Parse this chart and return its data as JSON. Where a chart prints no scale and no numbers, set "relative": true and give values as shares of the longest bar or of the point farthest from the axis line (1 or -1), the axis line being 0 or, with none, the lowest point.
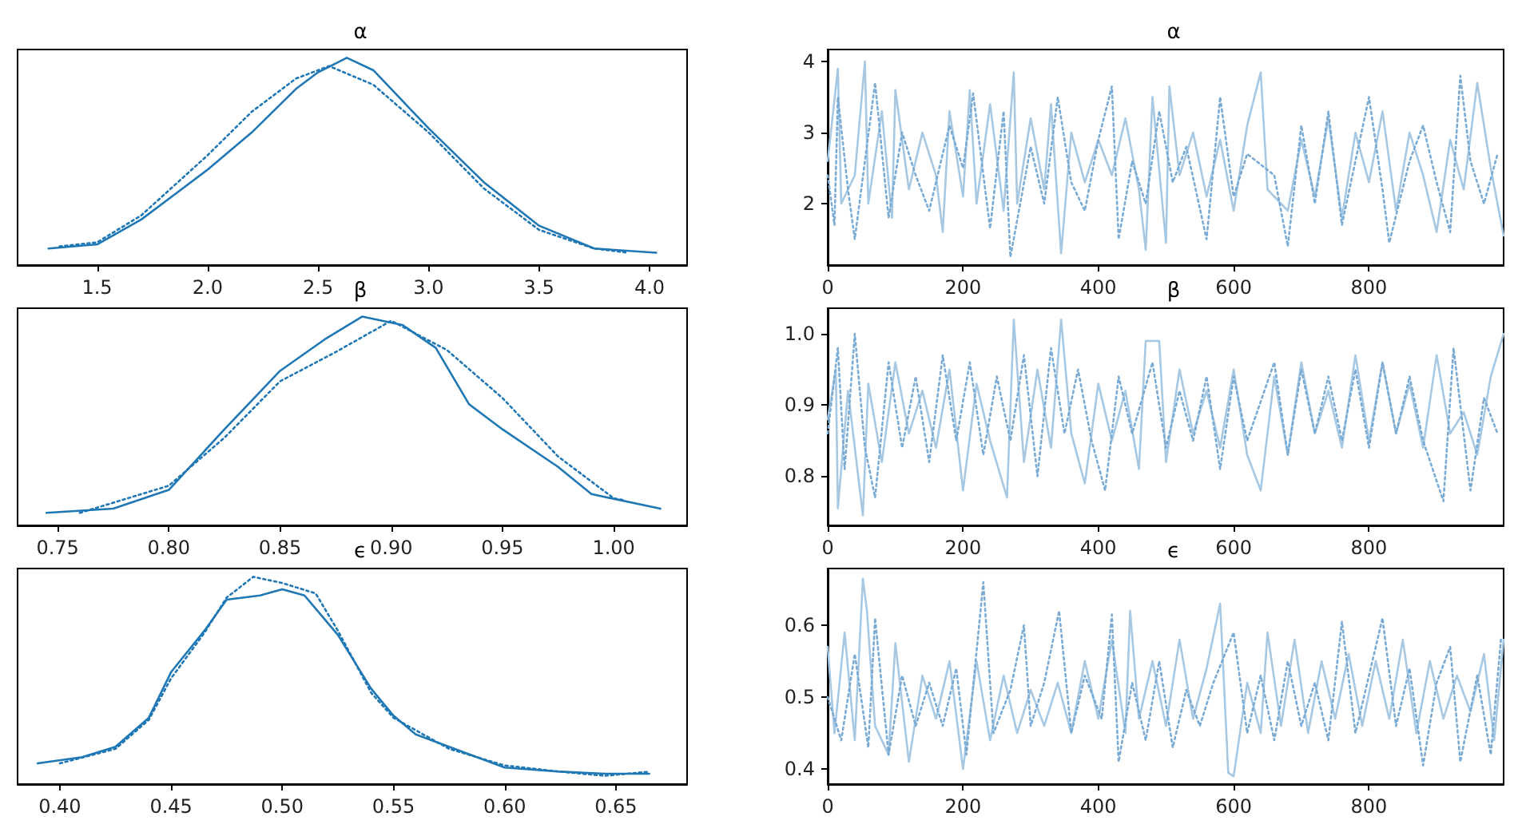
{
  "chart_data": [
    {
      "type": "line",
      "title": "α",
      "relative": true,
      "tick_labels": "x",
      "xlim": [
        1.14,
        4.17
      ],
      "xticks": [
        1.5,
        {
          "value": 2,
          "label": "2.0"
        },
        2.5,
        {
          "value": 3,
          "label": "3.0"
        },
        3.5,
        {
          "value": 4,
          "label": "4.0"
        }
      ],
      "series": [
        {
          "color": "#1f77b4",
          "line_style": "solid",
          "x": [
            1.28,
            1.5,
            1.7,
            2.0,
            2.2,
            2.4,
            2.5,
            2.63,
            2.75,
            3.0,
            3.25,
            3.5,
            3.75,
            4.03
          ],
          "values": [
            0.08,
            0.1,
            0.22,
            0.46,
            0.64,
            0.85,
            0.93,
            1,
            0.94,
            0.66,
            0.4,
            0.19,
            0.08,
            0.06
          ]
        },
        {
          "color": "#1f77b4",
          "line_style": "dotted",
          "x": [
            1.33,
            1.5,
            1.7,
            2.0,
            2.2,
            2.4,
            2.55,
            2.75,
            3.0,
            3.25,
            3.5,
            3.75,
            3.9
          ],
          "values": [
            0.09,
            0.11,
            0.24,
            0.53,
            0.74,
            0.9,
            0.96,
            0.87,
            0.64,
            0.37,
            0.17,
            0.08,
            0.06
          ]
        }
      ]
    },
    {
      "type": "line",
      "title": "α",
      "xlim": [
        0,
        999
      ],
      "xticks": [
        0,
        200,
        400,
        600,
        800
      ],
      "ylim": [
        1.135,
        4.17
      ],
      "yticks": [
        2,
        3,
        4
      ],
      "series": [
        {
          "color": "#a6c8e2",
          "line_style": "solid",
          "x": [
            0,
            15,
            20,
            40,
            55,
            60,
            80,
            95,
            100,
            120,
            140,
            160,
            170,
            180,
            200,
            210,
            220,
            240,
            260,
            275,
            280,
            300,
            320,
            330,
            345,
            360,
            380,
            400,
            420,
            440,
            460,
            470,
            480,
            500,
            505,
            520,
            540,
            560,
            580,
            600,
            620,
            640,
            650,
            680,
            700,
            720,
            740,
            760,
            780,
            800,
            820,
            840,
            860,
            880,
            900,
            920,
            940,
            960,
            980,
            999
          ],
          "values": [
            2.6,
            3.9,
            2.0,
            2.4,
            4.0,
            2.0,
            3.3,
            1.8,
            3.6,
            2.2,
            3.0,
            2.4,
            1.6,
            3.3,
            2.1,
            3.6,
            2.0,
            3.4,
            1.9,
            3.85,
            2.0,
            3.2,
            2.2,
            3.4,
            1.3,
            3.0,
            2.3,
            2.9,
            2.4,
            3.2,
            2.2,
            1.35,
            3.5,
            1.45,
            3.65,
            2.4,
            3.0,
            2.1,
            2.9,
            1.9,
            3.1,
            3.85,
            2.2,
            1.9,
            2.9,
            2.1,
            3.2,
            1.8,
            3.0,
            2.3,
            3.3,
            1.9,
            3.0,
            2.4,
            1.6,
            2.9,
            2.2,
            3.7,
            2.5,
            1.55
          ]
        },
        {
          "color": "#7aabd4",
          "line_style": "dotted",
          "x": [
            0,
            10,
            15,
            30,
            40,
            70,
            90,
            110,
            130,
            150,
            180,
            200,
            215,
            240,
            260,
            270,
            300,
            320,
            340,
            360,
            380,
            400,
            420,
            430,
            450,
            470,
            490,
            510,
            530,
            560,
            580,
            600,
            620,
            660,
            680,
            700,
            720,
            740,
            760,
            780,
            800,
            820,
            830,
            860,
            880,
            900,
            920,
            935,
            950,
            970,
            990
          ],
          "values": [
            2.4,
            1.7,
            3.5,
            2.2,
            1.5,
            3.7,
            1.8,
            3.0,
            2.4,
            1.9,
            3.1,
            2.5,
            3.55,
            1.65,
            3.3,
            1.25,
            2.8,
            2.0,
            3.5,
            2.3,
            1.9,
            2.9,
            3.65,
            1.5,
            2.6,
            2.0,
            3.3,
            2.3,
            2.8,
            1.5,
            3.5,
            2.1,
            2.7,
            2.4,
            1.4,
            3.1,
            2.0,
            3.3,
            1.7,
            2.6,
            3.5,
            2.2,
            1.45,
            2.6,
            3.1,
            2.3,
            1.6,
            3.8,
            2.6,
            2.0,
            2.7
          ]
        }
      ]
    },
    {
      "type": "line",
      "title": "β",
      "relative": true,
      "tick_labels": "x",
      "xlim": [
        0.732,
        1.033
      ],
      "xticks": [
        0.75,
        {
          "value": 0.8,
          "label": "0.80"
        },
        0.85,
        {
          "value": 0.9,
          "label": "0.90"
        },
        0.95,
        {
          "value": 1,
          "label": "1.00"
        }
      ],
      "series": [
        {
          "color": "#1f77b4",
          "line_style": "solid",
          "x": [
            0.745,
            0.775,
            0.8,
            0.825,
            0.85,
            0.87,
            0.887,
            0.905,
            0.92,
            0.935,
            0.95,
            0.975,
            0.99,
            1.021
          ],
          "values": [
            0.06,
            0.08,
            0.17,
            0.46,
            0.74,
            0.89,
            1,
            0.96,
            0.85,
            0.58,
            0.46,
            0.28,
            0.15,
            0.08
          ]
        },
        {
          "color": "#1f77b4",
          "line_style": "dotted",
          "x": [
            0.76,
            0.8,
            0.825,
            0.85,
            0.875,
            0.9,
            0.925,
            0.95,
            0.975,
            1.0,
            1.005
          ],
          "values": [
            0.06,
            0.19,
            0.42,
            0.69,
            0.83,
            0.98,
            0.84,
            0.61,
            0.33,
            0.13,
            0.12
          ]
        }
      ]
    },
    {
      "type": "line",
      "title": "β",
      "xlim": [
        0,
        999
      ],
      "xticks": [
        0,
        200,
        400,
        600,
        800
      ],
      "ylim": [
        0.731,
        1.036
      ],
      "yticks": [
        {
          "value": 0.8,
          "label": "0.8"
        },
        {
          "value": 0.9,
          "label": "0.9"
        },
        {
          "value": 1,
          "label": "1.0"
        }
      ],
      "series": [
        {
          "color": "#a6c8e2",
          "line_style": "solid",
          "x": [
            0,
            12,
            15,
            30,
            52,
            60,
            80,
            100,
            120,
            140,
            160,
            180,
            200,
            220,
            240,
            265,
            275,
            290,
            310,
            330,
            345,
            360,
            380,
            400,
            420,
            440,
            460,
            470,
            490,
            500,
            520,
            540,
            560,
            580,
            600,
            620,
            640,
            660,
            680,
            700,
            720,
            740,
            760,
            780,
            800,
            820,
            840,
            860,
            880,
            900,
            920,
            940,
            960,
            980,
            999
          ],
          "values": [
            0.88,
            0.95,
            0.755,
            0.92,
            0.745,
            0.93,
            0.82,
            0.96,
            0.86,
            0.92,
            0.84,
            0.95,
            0.78,
            0.93,
            0.85,
            0.77,
            1.02,
            0.82,
            0.95,
            0.84,
            1.02,
            0.86,
            0.79,
            0.93,
            0.85,
            0.92,
            0.81,
            0.99,
            0.99,
            0.82,
            0.95,
            0.86,
            0.92,
            0.84,
            0.95,
            0.83,
            0.78,
            0.94,
            0.83,
            0.96,
            0.86,
            0.92,
            0.84,
            0.97,
            0.85,
            0.96,
            0.86,
            0.93,
            0.84,
            0.97,
            0.86,
            0.89,
            0.83,
            0.94,
            1.0
          ]
        },
        {
          "color": "#7aabd4",
          "line_style": "dotted",
          "x": [
            0,
            15,
            25,
            40,
            55,
            70,
            90,
            110,
            130,
            150,
            170,
            190,
            210,
            230,
            250,
            270,
            290,
            310,
            330,
            350,
            370,
            390,
            410,
            430,
            450,
            480,
            500,
            520,
            540,
            560,
            580,
            600,
            620,
            660,
            680,
            700,
            720,
            740,
            760,
            780,
            800,
            820,
            840,
            860,
            880,
            910,
            925,
            950,
            970,
            990
          ],
          "values": [
            0.86,
            0.98,
            0.81,
            1.0,
            0.84,
            0.77,
            0.96,
            0.84,
            0.94,
            0.82,
            0.97,
            0.85,
            0.96,
            0.83,
            0.94,
            0.85,
            0.97,
            0.8,
            0.98,
            0.86,
            0.95,
            0.85,
            0.78,
            0.94,
            0.86,
            0.96,
            0.84,
            0.92,
            0.85,
            0.94,
            0.81,
            0.94,
            0.85,
            0.96,
            0.83,
            0.95,
            0.86,
            0.94,
            0.85,
            0.95,
            0.84,
            0.96,
            0.86,
            0.94,
            0.85,
            0.765,
            0.98,
            0.78,
            0.91,
            0.86
          ]
        }
      ]
    },
    {
      "type": "line",
      "title": "ϵ",
      "relative": true,
      "tick_labels": "x",
      "xlim": [
        0.381,
        0.682
      ],
      "xticks": [
        {
          "value": 0.4,
          "label": "0.40"
        },
        0.45,
        {
          "value": 0.5,
          "label": "0.50"
        },
        0.55,
        {
          "value": 0.6,
          "label": "0.60"
        },
        0.65
      ],
      "series": [
        {
          "color": "#1f77b4",
          "line_style": "solid",
          "x": [
            0.39,
            0.41,
            0.425,
            0.44,
            0.45,
            0.465,
            0.475,
            0.49,
            0.5,
            0.51,
            0.525,
            0.54,
            0.55,
            0.56,
            0.575,
            0.6,
            0.625,
            0.645,
            0.665
          ],
          "values": [
            0.1,
            0.13,
            0.18,
            0.32,
            0.54,
            0.74,
            0.89,
            0.91,
            0.94,
            0.91,
            0.72,
            0.46,
            0.33,
            0.24,
            0.18,
            0.08,
            0.06,
            0.05,
            0.05
          ]
        },
        {
          "color": "#1f77b4",
          "line_style": "dotted",
          "x": [
            0.4,
            0.425,
            0.44,
            0.45,
            0.465,
            0.475,
            0.487,
            0.5,
            0.515,
            0.525,
            0.54,
            0.55,
            0.575,
            0.6,
            0.625,
            0.645,
            0.665
          ],
          "values": [
            0.1,
            0.17,
            0.31,
            0.51,
            0.73,
            0.9,
            1,
            0.97,
            0.92,
            0.74,
            0.44,
            0.32,
            0.17,
            0.09,
            0.06,
            0.04,
            0.06
          ]
        }
      ]
    },
    {
      "type": "line",
      "title": "ϵ",
      "xlim": [
        0,
        999
      ],
      "xticks": [
        0,
        200,
        400,
        600,
        800
      ],
      "ylim": [
        0.379,
        0.679
      ],
      "yticks": [
        0.4,
        0.5,
        0.6
      ],
      "series": [
        {
          "color": "#a6c8e2",
          "line_style": "solid",
          "x": [
            0,
            10,
            25,
            40,
            52,
            58,
            70,
            90,
            100,
            120,
            140,
            160,
            180,
            200,
            220,
            240,
            260,
            280,
            300,
            320,
            340,
            360,
            380,
            400,
            420,
            440,
            447,
            460,
            480,
            500,
            520,
            540,
            560,
            580,
            592,
            600,
            620,
            640,
            650,
            670,
            690,
            710,
            730,
            750,
            770,
            790,
            810,
            830,
            850,
            870,
            890,
            910,
            930,
            950,
            970,
            985,
            999
          ],
          "values": [
            0.57,
            0.45,
            0.59,
            0.44,
            0.665,
            0.62,
            0.46,
            0.42,
            0.575,
            0.41,
            0.53,
            0.47,
            0.55,
            0.4,
            0.55,
            0.44,
            0.53,
            0.45,
            0.51,
            0.46,
            0.52,
            0.45,
            0.55,
            0.47,
            0.58,
            0.45,
            0.62,
            0.47,
            0.55,
            0.46,
            0.58,
            0.47,
            0.54,
            0.63,
            0.395,
            0.39,
            0.52,
            0.45,
            0.59,
            0.46,
            0.58,
            0.45,
            0.55,
            0.47,
            0.56,
            0.46,
            0.55,
            0.47,
            0.58,
            0.45,
            0.55,
            0.47,
            0.53,
            0.48,
            0.56,
            0.44,
            0.58
          ]
        },
        {
          "color": "#7aabd4",
          "line_style": "dotted",
          "x": [
            0,
            20,
            40,
            60,
            70,
            90,
            110,
            130,
            150,
            170,
            190,
            205,
            230,
            245,
            270,
            290,
            300,
            320,
            342,
            360,
            380,
            405,
            420,
            430,
            450,
            470,
            490,
            510,
            530,
            550,
            570,
            600,
            620,
            640,
            660,
            680,
            700,
            720,
            740,
            760,
            780,
            800,
            820,
            840,
            860,
            880,
            900,
            920,
            935,
            960,
            980,
            995
          ],
          "values": [
            0.5,
            0.44,
            0.56,
            0.43,
            0.61,
            0.42,
            0.53,
            0.46,
            0.52,
            0.46,
            0.54,
            0.42,
            0.66,
            0.45,
            0.51,
            0.6,
            0.46,
            0.52,
            0.62,
            0.45,
            0.53,
            0.47,
            0.615,
            0.41,
            0.52,
            0.44,
            0.55,
            0.43,
            0.51,
            0.46,
            0.52,
            0.59,
            0.45,
            0.53,
            0.44,
            0.55,
            0.46,
            0.52,
            0.44,
            0.605,
            0.45,
            0.53,
            0.61,
            0.46,
            0.54,
            0.405,
            0.52,
            0.57,
            0.41,
            0.53,
            0.42,
            0.58
          ]
        }
      ]
    }
  ]
}
